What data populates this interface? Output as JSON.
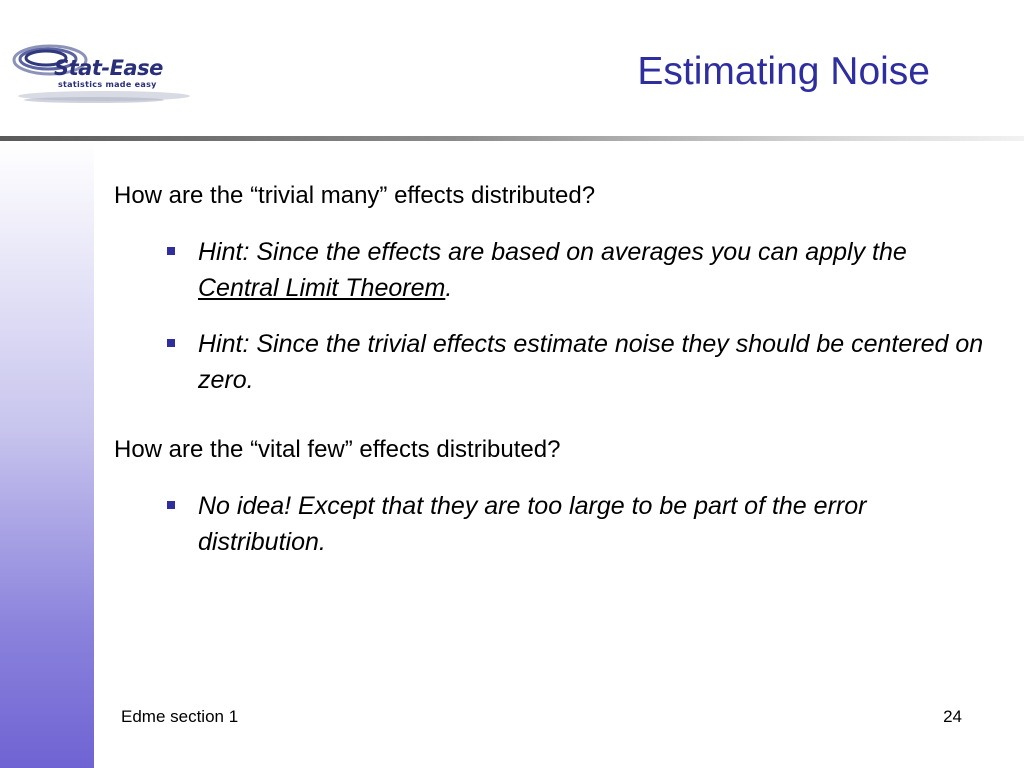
{
  "logo": {
    "text": "Stat-Ease",
    "tagline": "statistics made easy"
  },
  "slide": {
    "title": "Estimating Noise"
  },
  "content": {
    "question1": "How are the “trivial many” effects distributed?",
    "hint1": {
      "before": "Hint: Since the effects are based on averages you can apply the ",
      "link": "Central Limit Theorem",
      "after": "."
    },
    "hint2": "Hint: Since the trivial effects estimate noise they should be centered on zero.",
    "question2": "How are the “vital few” effects distributed?",
    "hint3": "No idea!  Except that they are too large to be part of the error distribution."
  },
  "footer": {
    "section": "Edme section 1",
    "page_number": "24"
  },
  "colors": {
    "title": "#2e2e9e",
    "bullet": "#2e2e9e",
    "sidebar_bottom": "#6f63d3"
  }
}
